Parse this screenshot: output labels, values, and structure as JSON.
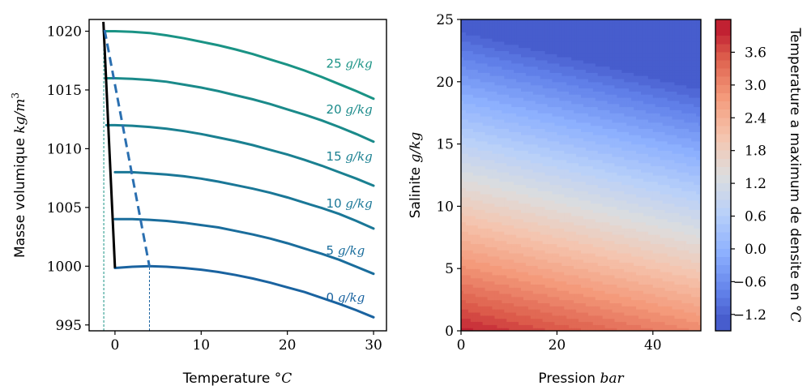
{
  "chart_data": [
    {
      "type": "line",
      "xlabel": "Temperature °C",
      "ylabel": "Masse volumique kg/m³",
      "xlim": [
        -3.0,
        31.5
      ],
      "ylim": [
        994.5,
        1021.0
      ],
      "xticks": [
        "0",
        "10",
        "20",
        "30"
      ],
      "xtick_values": [
        0,
        10,
        20,
        30
      ],
      "yticks": [
        "995",
        "1000",
        "1005",
        "1010",
        "1015",
        "1020"
      ],
      "ytick_values": [
        995,
        1000,
        1005,
        1010,
        1015,
        1020
      ],
      "series": [
        {
          "name": "0 g/kg",
          "color": "#1a63a0",
          "x": [
            0,
            2,
            4,
            6,
            8,
            10,
            12,
            14,
            16,
            18,
            20,
            22,
            24,
            26,
            28,
            30
          ],
          "y": [
            999.85,
            999.95,
            1000.0,
            999.95,
            999.85,
            999.7,
            999.5,
            999.25,
            998.95,
            998.6,
            998.2,
            997.8,
            997.3,
            996.8,
            996.25,
            995.65
          ]
        },
        {
          "name": "5 g/kg",
          "color": "#1a6d9c",
          "x": [
            0,
            2,
            4,
            6,
            8,
            10,
            12,
            14,
            16,
            18,
            20,
            22,
            24,
            26,
            28,
            30
          ],
          "y": [
            1004.0,
            1004.0,
            1003.95,
            1003.85,
            1003.7,
            1003.5,
            1003.3,
            1003.0,
            1002.7,
            1002.35,
            1001.95,
            1001.5,
            1001.05,
            1000.55,
            999.95,
            999.35
          ]
        },
        {
          "name": "10 g/kg",
          "color": "#1a7797",
          "x": [
            0,
            2,
            4,
            6,
            8,
            10,
            12,
            14,
            16,
            18,
            20,
            22,
            24,
            26,
            28,
            30
          ],
          "y": [
            1008.0,
            1008.0,
            1007.9,
            1007.8,
            1007.65,
            1007.45,
            1007.2,
            1006.9,
            1006.6,
            1006.25,
            1005.85,
            1005.4,
            1004.95,
            1004.45,
            1003.85,
            1003.2
          ]
        },
        {
          "name": "15 g/kg",
          "color": "#1a8091",
          "x": [
            -1,
            0,
            2,
            4,
            6,
            8,
            10,
            12,
            14,
            16,
            18,
            20,
            22,
            24,
            26,
            28,
            30
          ],
          "y": [
            1012.0,
            1012.0,
            1011.95,
            1011.85,
            1011.7,
            1011.5,
            1011.25,
            1010.95,
            1010.65,
            1010.3,
            1009.9,
            1009.5,
            1009.05,
            1008.55,
            1008.0,
            1007.45,
            1006.85
          ]
        },
        {
          "name": "20 g/kg",
          "color": "#1a8a8a",
          "x": [
            -1.1,
            0,
            2,
            4,
            6,
            8,
            10,
            12,
            14,
            16,
            18,
            20,
            22,
            24,
            26,
            28,
            30
          ],
          "y": [
            1016.0,
            1016.0,
            1015.95,
            1015.85,
            1015.7,
            1015.45,
            1015.2,
            1014.9,
            1014.55,
            1014.2,
            1013.8,
            1013.35,
            1012.9,
            1012.4,
            1011.85,
            1011.25,
            1010.6
          ]
        },
        {
          "name": "25 g/kg",
          "color": "#1a9385",
          "x": [
            -1.3,
            0,
            2,
            4,
            6,
            8,
            10,
            12,
            14,
            16,
            18,
            20,
            22,
            24,
            26,
            28,
            30
          ],
          "y": [
            1020.0,
            1020.0,
            1019.95,
            1019.85,
            1019.65,
            1019.4,
            1019.1,
            1018.8,
            1018.45,
            1018.05,
            1017.6,
            1017.15,
            1016.65,
            1016.1,
            1015.5,
            1014.9,
            1014.25
          ]
        }
      ],
      "lines": [
        {
          "kind": "freezing",
          "color": "#000000",
          "x": [
            -1.35,
            0.0,
            0.0
          ],
          "y": [
            1020.8,
            999.85,
            999.85
          ]
        },
        {
          "kind": "max_density",
          "color": "#2a6fb0",
          "x": [
            -1.2,
            4.0
          ],
          "y": [
            1020.1,
            999.95
          ]
        }
      ],
      "vlines": [
        {
          "x": -1.3,
          "color": "#1a9385",
          "y": [
            994.5,
            1020.0
          ]
        },
        {
          "x": 4.0,
          "color": "#1a63a0",
          "y": [
            994.5,
            1000.0
          ]
        }
      ],
      "labels": [
        {
          "series": "25 g/kg",
          "text": "25 g/kg",
          "x": 24.5,
          "y": 1016.9
        },
        {
          "series": "20 g/kg",
          "text": "20 g/kg",
          "x": 24.5,
          "y": 1013.0
        },
        {
          "series": "15 g/kg",
          "text": "15 g/kg",
          "x": 24.5,
          "y": 1009.0
        },
        {
          "series": "10 g/kg",
          "text": "10 g/kg",
          "x": 24.5,
          "y": 1005.0
        },
        {
          "series": "5 g/kg",
          "text": "5 g/kg",
          "x": 24.5,
          "y": 1001.0
        },
        {
          "series": "0 g/kg",
          "text": "0 g/kg",
          "x": 24.5,
          "y": 997.0
        }
      ]
    },
    {
      "type": "heatmap",
      "xlabel": "Pression bar",
      "ylabel": "Salinite g/kg",
      "xlim": [
        0,
        50
      ],
      "ylim": [
        0,
        25
      ],
      "xticks": [
        "0",
        "20",
        "40"
      ],
      "xtick_values": [
        0,
        20,
        40
      ],
      "yticks": [
        "0",
        "5",
        "10",
        "15",
        "20",
        "25"
      ],
      "ytick_values": [
        0,
        5,
        10,
        15,
        20,
        25
      ],
      "colorbar": {
        "label": "Temperature a maximum de densite en °C",
        "range": [
          -1.5,
          4.2
        ],
        "ticks": [
          "3.6",
          "3.0",
          "2.4",
          "1.8",
          "1.2",
          "0.6",
          "0.0",
          "−0.6",
          "−1.2"
        ],
        "tick_values": [
          3.6,
          3.0,
          2.4,
          1.8,
          1.2,
          0.6,
          0.0,
          -0.6,
          -1.2
        ],
        "colormap": "coolwarm"
      },
      "field": {
        "t0": 3.98,
        "dT_dS": -0.216,
        "dT_dP": -0.02,
        "min_clip": -1.35,
        "levels": [
          -1.35,
          -1.2,
          -1.05,
          -0.9,
          -0.75,
          -0.6,
          -0.45,
          -0.3,
          -0.15,
          0.0,
          0.15,
          0.3,
          0.45,
          0.6,
          0.75,
          0.9,
          1.05,
          1.2,
          1.35,
          1.5,
          1.65,
          1.8,
          1.95,
          2.1,
          2.25,
          2.4,
          2.55,
          2.7,
          2.85,
          3.0,
          3.15,
          3.3,
          3.45,
          3.6,
          3.75,
          3.9,
          4.05
        ]
      }
    }
  ]
}
